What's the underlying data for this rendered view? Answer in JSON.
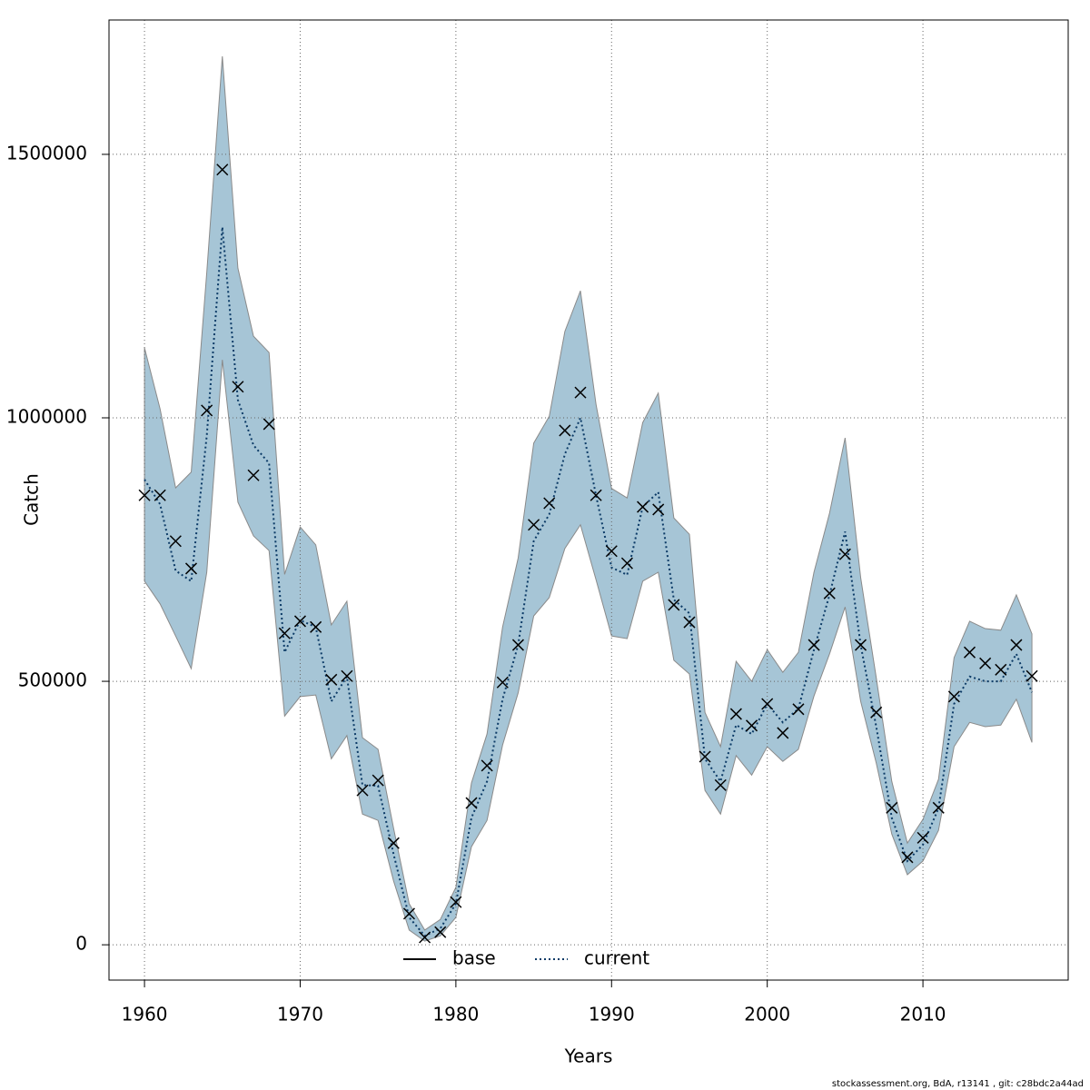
{
  "chart_data": {
    "type": "line",
    "x_label": "Years",
    "y_label": "Catch",
    "footer": "stockassessment.org, BdA, r13141 , git: c28bdc2a44ad",
    "xlim": [
      1957.72,
      2019.33
    ],
    "ylim": [
      -67000,
      1755000
    ],
    "xticks": [
      1960,
      1970,
      1980,
      1990,
      2000,
      2010
    ],
    "yticks": [
      0,
      500000,
      1000000,
      1500000
    ],
    "grid": true,
    "legend_position": "bottom",
    "x": [
      1960,
      1961,
      1962,
      1963,
      1964,
      1965,
      1966,
      1967,
      1968,
      1969,
      1970,
      1971,
      1972,
      1973,
      1974,
      1975,
      1976,
      1977,
      1978,
      1979,
      1980,
      1981,
      1982,
      1983,
      1984,
      1985,
      1986,
      1987,
      1988,
      1989,
      1990,
      1991,
      1992,
      1993,
      1994,
      1995,
      1996,
      1997,
      1998,
      1999,
      2000,
      2001,
      2002,
      2003,
      2004,
      2005,
      2006,
      2007,
      2008,
      2009,
      2010,
      2011,
      2012,
      2013,
      2014,
      2015,
      2016,
      2017
    ],
    "band": {
      "color": "#a6c5d6",
      "edge": "#8a8a8a",
      "upper": [
        1133000,
        1017000,
        867000,
        897000,
        1276000,
        1686000,
        1284000,
        1155000,
        1124000,
        703000,
        793000,
        759000,
        607000,
        652000,
        393000,
        371000,
        221000,
        78000,
        28000,
        48000,
        109000,
        307000,
        400000,
        603000,
        734000,
        952000,
        1003000,
        1164000,
        1241000,
        1026000,
        866000,
        848000,
        991000,
        1047000,
        810000,
        779000,
        441000,
        376000,
        538000,
        500000,
        560000,
        517000,
        555000,
        707000,
        819000,
        962000,
        697000,
        507000,
        310000,
        193000,
        238000,
        314000,
        545000,
        614000,
        600000,
        597000,
        664000,
        590000
      ],
      "lower": [
        690000,
        647000,
        586000,
        524000,
        707000,
        1110000,
        840000,
        776000,
        748000,
        434000,
        471000,
        474000,
        353000,
        397000,
        248000,
        236000,
        121000,
        28000,
        7000,
        17000,
        52000,
        186000,
        236000,
        379000,
        478000,
        624000,
        659000,
        752000,
        797000,
        693000,
        586000,
        581000,
        690000,
        707000,
        540000,
        514000,
        293000,
        248000,
        359000,
        322000,
        376000,
        348000,
        371000,
        472000,
        552000,
        641000,
        462000,
        345000,
        210000,
        133000,
        159000,
        217000,
        376000,
        422000,
        414000,
        417000,
        466000,
        384000
      ]
    },
    "series": [
      {
        "name": "base",
        "color": "#000000",
        "dash": "solid",
        "values": [
          null,
          null,
          null,
          null,
          null,
          null,
          null,
          null,
          null,
          null,
          null,
          null,
          null,
          null,
          null,
          null,
          null,
          null,
          null,
          null,
          null,
          null,
          null,
          null,
          null,
          null,
          null,
          null,
          null,
          null,
          null,
          null,
          null,
          null,
          null,
          null,
          null,
          null,
          null,
          null,
          null,
          null,
          null,
          null,
          null,
          null,
          null,
          null,
          null,
          null,
          null,
          null,
          null,
          null,
          null,
          null,
          null,
          null
        ]
      },
      {
        "name": "current",
        "color": "#0b3a66",
        "dash": "dotted",
        "values": [
          883000,
          836000,
          710000,
          690000,
          966000,
          1362000,
          1034000,
          948000,
          914000,
          555000,
          616000,
          603000,
          462000,
          509000,
          303000,
          302000,
          172000,
          52000,
          17000,
          31000,
          78000,
          241000,
          310000,
          466000,
          569000,
          766000,
          817000,
          931000,
          1000000,
          853000,
          716000,
          702000,
          831000,
          859000,
          655000,
          629000,
          353000,
          310000,
          417000,
          400000,
          457000,
          422000,
          448000,
          560000,
          664000,
          784000,
          569000,
          414000,
          241000,
          159000,
          190000,
          259000,
          457000,
          509000,
          500000,
          500000,
          552000,
          479000
        ]
      }
    ],
    "observed": {
      "color": "#000000",
      "values": [
        853000,
        853000,
        766000,
        714000,
        1014000,
        1471000,
        1059000,
        891000,
        988000,
        591000,
        614000,
        603000,
        503000,
        510000,
        293000,
        312000,
        193000,
        59000,
        14000,
        24000,
        81000,
        269000,
        340000,
        498000,
        569000,
        797000,
        838000,
        976000,
        1048000,
        853000,
        747000,
        724000,
        831000,
        826000,
        645000,
        612000,
        357000,
        303000,
        438000,
        416000,
        457000,
        402000,
        447000,
        569000,
        667000,
        741000,
        569000,
        441000,
        260000,
        166000,
        203000,
        260000,
        471000,
        555000,
        534000,
        522000,
        569000,
        510000
      ]
    }
  }
}
